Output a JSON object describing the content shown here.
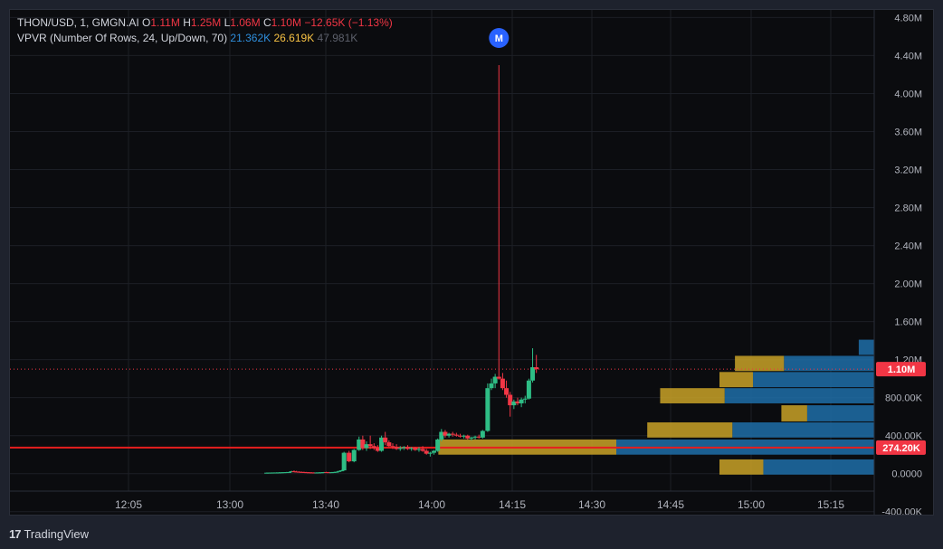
{
  "legend": {
    "symbol": "THON/USD, 1, GMGN.AI",
    "o_label": "O",
    "o_value": "1.11M",
    "h_label": "H",
    "h_value": "1.25M",
    "l_label": "L",
    "l_value": "1.06M",
    "c_label": "C",
    "c_value": "1.10M",
    "change": "−12.65K (−1.13%)",
    "indicator": "VPVR (Number Of Rows, 24, Up/Down, 70)",
    "vp_up": "21.362K",
    "vp_down": "26.619K",
    "vp_total": "47.981K"
  },
  "marker": {
    "label": "M",
    "time": "14:09"
  },
  "footer": {
    "brand": "TradingView",
    "logo": "17"
  },
  "colors": {
    "up": "#26a69a",
    "up_candle": "#2ebd85",
    "down": "#f23645",
    "vp_up": "#1e6fa8",
    "vp_up_value_area": "#2477b5",
    "vp_down": "#a08020",
    "vp_down_value_area": "#c9a227",
    "hline": "#e61e1e",
    "price_tag": "#f23645",
    "marker": "#2962ff"
  },
  "chart_data": {
    "type": "candlestick",
    "y_ticks": [
      "4.80M",
      "4.40M",
      "4.00M",
      "3.60M",
      "3.20M",
      "2.80M",
      "2.40M",
      "2.00M",
      "1.60M",
      "1.20M",
      "800.00K",
      "400.00K",
      "0.0000",
      "-400.00K"
    ],
    "y_tick_values": [
      4800000,
      4400000,
      4000000,
      3600000,
      3200000,
      2800000,
      2400000,
      2000000,
      1600000,
      1200000,
      800000,
      400000,
      0,
      -400000
    ],
    "x_ticks": [
      "12:05",
      "13:00",
      "13:40",
      "14:00",
      "14:15",
      "14:30",
      "14:45",
      "15:00",
      "15:15"
    ],
    "ylim": [
      -450000,
      4880000
    ],
    "last_price": 1100000,
    "last_price_label": "1.10M",
    "horizontal_line": 274200,
    "horizontal_line_label": "274.20K",
    "candles": [
      {
        "t": 12.0,
        "o": 10000,
        "h": 12000,
        "l": 8000,
        "c": 10000
      },
      {
        "t": 12.2,
        "o": 10000,
        "h": 12000,
        "l": 9000,
        "c": 11000
      },
      {
        "t": 12.4,
        "o": 11000,
        "h": 13000,
        "l": 10000,
        "c": 11000
      },
      {
        "t": 12.6,
        "o": 11000,
        "h": 13000,
        "l": 10000,
        "c": 12000
      },
      {
        "t": 12.8,
        "o": 12000,
        "h": 14000,
        "l": 11000,
        "c": 12000
      },
      {
        "t": 13.0,
        "o": 12000,
        "h": 15000,
        "l": 11000,
        "c": 13000
      },
      {
        "t": 13.2,
        "o": 13000,
        "h": 15000,
        "l": 12000,
        "c": 14000
      },
      {
        "t": 13.4,
        "o": 14000,
        "h": 16000,
        "l": 13000,
        "c": 15000
      },
      {
        "t": 13.6,
        "o": 15000,
        "h": 18000,
        "l": 14000,
        "c": 16000
      },
      {
        "t": 13.8,
        "o": 16000,
        "h": 20000,
        "l": 15000,
        "c": 17000
      },
      {
        "t": 14.0,
        "o": 17000,
        "h": 30000,
        "l": 16000,
        "c": 25000
      },
      {
        "t": 14.2,
        "o": 25000,
        "h": 35000,
        "l": 20000,
        "c": 22000
      },
      {
        "t": 14.4,
        "o": 22000,
        "h": 30000,
        "l": 18000,
        "c": 20000
      },
      {
        "t": 14.6,
        "o": 20000,
        "h": 25000,
        "l": 15000,
        "c": 18000
      },
      {
        "t": 14.8,
        "o": 18000,
        "h": 22000,
        "l": 14000,
        "c": 17000
      },
      {
        "t": 15.0,
        "o": 17000,
        "h": 20000,
        "l": 13000,
        "c": 15000
      },
      {
        "t": 15.2,
        "o": 15000,
        "h": 18000,
        "l": 12000,
        "c": 14000
      },
      {
        "t": 15.4,
        "o": 14000,
        "h": 16000,
        "l": 11000,
        "c": 13000
      },
      {
        "t": 15.6,
        "o": 13000,
        "h": 15000,
        "l": 10000,
        "c": 12000
      },
      {
        "t": 15.8,
        "o": 12000,
        "h": 14000,
        "l": 10000,
        "c": 11000
      },
      {
        "t": 16.0,
        "o": 11000,
        "h": 14000,
        "l": 10000,
        "c": 12000
      },
      {
        "t": 16.2,
        "o": 12000,
        "h": 15000,
        "l": 11000,
        "c": 13000
      },
      {
        "t": 16.4,
        "o": 13000,
        "h": 16000,
        "l": 12000,
        "c": 14000
      },
      {
        "t": 16.6,
        "o": 14000,
        "h": 18000,
        "l": 13000,
        "c": 16000
      },
      {
        "t": 16.8,
        "o": 16000,
        "h": 20000,
        "l": 14000,
        "c": 15000
      },
      {
        "t": 17.0,
        "o": 15000,
        "h": 18000,
        "l": 13000,
        "c": 14000
      },
      {
        "t": 17.2,
        "o": 14000,
        "h": 17000,
        "l": 12000,
        "c": 15000
      },
      {
        "t": 17.4,
        "o": 15000,
        "h": 19000,
        "l": 14000,
        "c": 17000
      },
      {
        "t": 17.6,
        "o": 17000,
        "h": 22000,
        "l": 16000,
        "c": 20000
      },
      {
        "t": 17.8,
        "o": 20000,
        "h": 30000,
        "l": 18000,
        "c": 28000
      },
      {
        "t": 18.0,
        "o": 28000,
        "h": 40000,
        "l": 25000,
        "c": 35000
      },
      {
        "t": 18.2,
        "o": 35000,
        "h": 230000,
        "l": 30000,
        "c": 220000
      },
      {
        "t": 18.6,
        "o": 220000,
        "h": 240000,
        "l": 120000,
        "c": 130000
      },
      {
        "t": 19.0,
        "o": 130000,
        "h": 260000,
        "l": 120000,
        "c": 250000
      },
      {
        "t": 19.4,
        "o": 250000,
        "h": 390000,
        "l": 240000,
        "c": 360000
      },
      {
        "t": 19.7,
        "o": 360000,
        "h": 400000,
        "l": 250000,
        "c": 270000
      },
      {
        "t": 20.0,
        "o": 270000,
        "h": 340000,
        "l": 240000,
        "c": 310000
      },
      {
        "t": 20.3,
        "o": 310000,
        "h": 400000,
        "l": 260000,
        "c": 290000
      },
      {
        "t": 20.6,
        "o": 290000,
        "h": 320000,
        "l": 250000,
        "c": 270000
      },
      {
        "t": 20.9,
        "o": 270000,
        "h": 300000,
        "l": 230000,
        "c": 240000
      },
      {
        "t": 21.2,
        "o": 240000,
        "h": 400000,
        "l": 230000,
        "c": 380000
      },
      {
        "t": 21.5,
        "o": 380000,
        "h": 440000,
        "l": 300000,
        "c": 330000
      },
      {
        "t": 21.8,
        "o": 330000,
        "h": 350000,
        "l": 280000,
        "c": 290000
      },
      {
        "t": 22.1,
        "o": 290000,
        "h": 320000,
        "l": 260000,
        "c": 280000
      },
      {
        "t": 22.4,
        "o": 280000,
        "h": 310000,
        "l": 250000,
        "c": 260000
      },
      {
        "t": 22.7,
        "o": 260000,
        "h": 290000,
        "l": 240000,
        "c": 270000
      },
      {
        "t": 23.0,
        "o": 270000,
        "h": 290000,
        "l": 250000,
        "c": 280000
      },
      {
        "t": 23.3,
        "o": 280000,
        "h": 300000,
        "l": 250000,
        "c": 260000
      },
      {
        "t": 23.6,
        "o": 260000,
        "h": 280000,
        "l": 240000,
        "c": 270000
      },
      {
        "t": 23.9,
        "o": 270000,
        "h": 280000,
        "l": 240000,
        "c": 250000
      },
      {
        "t": 24.2,
        "o": 250000,
        "h": 280000,
        "l": 230000,
        "c": 260000
      },
      {
        "t": 24.5,
        "o": 260000,
        "h": 290000,
        "l": 230000,
        "c": 240000
      },
      {
        "t": 24.8,
        "o": 240000,
        "h": 260000,
        "l": 200000,
        "c": 210000
      },
      {
        "t": 25.1,
        "o": 210000,
        "h": 230000,
        "l": 180000,
        "c": 220000
      },
      {
        "t": 25.4,
        "o": 220000,
        "h": 250000,
        "l": 200000,
        "c": 240000
      },
      {
        "t": 25.7,
        "o": 240000,
        "h": 370000,
        "l": 230000,
        "c": 360000
      },
      {
        "t": 26.0,
        "o": 360000,
        "h": 470000,
        "l": 340000,
        "c": 440000
      },
      {
        "t": 26.3,
        "o": 440000,
        "h": 460000,
        "l": 380000,
        "c": 400000
      },
      {
        "t": 26.6,
        "o": 400000,
        "h": 430000,
        "l": 380000,
        "c": 420000
      },
      {
        "t": 26.9,
        "o": 420000,
        "h": 440000,
        "l": 390000,
        "c": 410000
      },
      {
        "t": 27.2,
        "o": 410000,
        "h": 430000,
        "l": 390000,
        "c": 400000
      },
      {
        "t": 27.5,
        "o": 400000,
        "h": 420000,
        "l": 380000,
        "c": 390000
      },
      {
        "t": 27.8,
        "o": 390000,
        "h": 410000,
        "l": 370000,
        "c": 400000
      },
      {
        "t": 28.1,
        "o": 400000,
        "h": 410000,
        "l": 360000,
        "c": 370000
      },
      {
        "t": 28.4,
        "o": 370000,
        "h": 390000,
        "l": 350000,
        "c": 380000
      },
      {
        "t": 28.7,
        "o": 380000,
        "h": 400000,
        "l": 360000,
        "c": 390000
      },
      {
        "t": 29.0,
        "o": 390000,
        "h": 410000,
        "l": 370000,
        "c": 380000
      },
      {
        "t": 29.3,
        "o": 380000,
        "h": 460000,
        "l": 370000,
        "c": 450000
      },
      {
        "t": 29.7,
        "o": 450000,
        "h": 950000,
        "l": 440000,
        "c": 900000
      },
      {
        "t": 30.0,
        "o": 900000,
        "h": 1000000,
        "l": 880000,
        "c": 950000
      },
      {
        "t": 30.3,
        "o": 950000,
        "h": 1050000,
        "l": 900000,
        "c": 1020000
      },
      {
        "t": 30.6,
        "o": 1020000,
        "h": 4300000,
        "l": 990000,
        "c": 1000000
      },
      {
        "t": 30.9,
        "o": 1000000,
        "h": 1060000,
        "l": 880000,
        "c": 900000
      },
      {
        "t": 31.2,
        "o": 900000,
        "h": 980000,
        "l": 800000,
        "c": 830000
      },
      {
        "t": 31.5,
        "o": 830000,
        "h": 860000,
        "l": 600000,
        "c": 720000
      },
      {
        "t": 31.8,
        "o": 720000,
        "h": 780000,
        "l": 680000,
        "c": 760000
      },
      {
        "t": 32.1,
        "o": 760000,
        "h": 800000,
        "l": 720000,
        "c": 740000
      },
      {
        "t": 32.4,
        "o": 740000,
        "h": 800000,
        "l": 700000,
        "c": 780000
      },
      {
        "t": 32.7,
        "o": 780000,
        "h": 820000,
        "l": 740000,
        "c": 790000
      },
      {
        "t": 33.0,
        "o": 790000,
        "h": 1000000,
        "l": 780000,
        "c": 980000
      },
      {
        "t": 33.3,
        "o": 980000,
        "h": 1320000,
        "l": 960000,
        "c": 1120000
      },
      {
        "t": 33.6,
        "o": 1120000,
        "h": 1250000,
        "l": 1060000,
        "c": 1100000
      }
    ],
    "volume_profile": [
      {
        "price_lo": -10000,
        "price_hi": 150000,
        "up": 0.43,
        "down": 0.17
      },
      {
        "price_lo": 200000,
        "price_hi": 360000,
        "up": 1.0,
        "down": 0.69
      },
      {
        "price_lo": 380000,
        "price_hi": 540000,
        "up": 0.55,
        "down": 0.33
      },
      {
        "price_lo": 550000,
        "price_hi": 720000,
        "up": 0.26,
        "down": 0.1
      },
      {
        "price_lo": 740000,
        "price_hi": 900000,
        "up": 0.58,
        "down": 0.25
      },
      {
        "price_lo": 910000,
        "price_hi": 1070000,
        "up": 0.47,
        "down": 0.13
      },
      {
        "price_lo": 1080000,
        "price_hi": 1240000,
        "up": 0.35,
        "down": 0.19
      },
      {
        "price_lo": 1250000,
        "price_hi": 1410000,
        "up": 0.06,
        "down": 0.0
      }
    ]
  }
}
